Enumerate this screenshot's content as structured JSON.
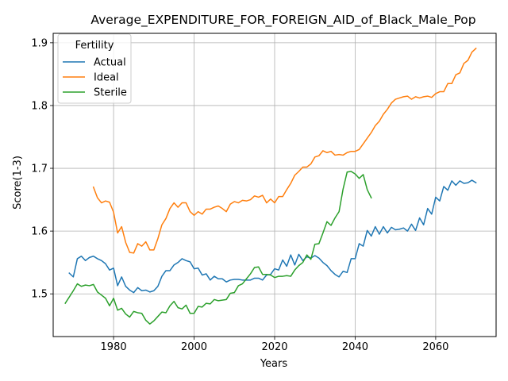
{
  "chart_data": {
    "type": "line",
    "title": "Average_EXPENDITURE_FOR_FOREIGN_AID_of_Black_Male_Pop",
    "xlabel": "Years",
    "ylabel": "Score(1-3)",
    "xlim": [
      1965,
      2075
    ],
    "ylim": [
      1.432,
      1.915
    ],
    "xticks": [
      1980,
      2000,
      2020,
      2040,
      2060
    ],
    "yticks": [
      1.5,
      1.6,
      1.7,
      1.8,
      1.9
    ],
    "xtick_labels": [
      "1980",
      "2000",
      "2020",
      "2040",
      "2060"
    ],
    "ytick_labels": [
      "1.5",
      "1.6",
      "1.7",
      "1.8",
      "1.9"
    ],
    "grid": true,
    "legend": {
      "title": "Fertility",
      "placement": "top-left"
    },
    "series": [
      {
        "name": "Actual",
        "color": "#1f77b4",
        "x": [
          1969,
          1970,
          1971,
          1972,
          1973,
          1974,
          1975,
          1976,
          1977,
          1978,
          1979,
          1980,
          1981,
          1982,
          1983,
          1984,
          1985,
          1986,
          1987,
          1988,
          1989,
          1990,
          1991,
          1992,
          1993,
          1994,
          1995,
          1996,
          1997,
          1998,
          1999,
          2000,
          2001,
          2002,
          2003,
          2004,
          2005,
          2006,
          2007,
          2008,
          2009,
          2010,
          2011,
          2012,
          2013,
          2014,
          2015,
          2016,
          2017,
          2018,
          2019,
          2020,
          2021,
          2022,
          2023,
          2024,
          2025,
          2026,
          2027,
          2028,
          2029,
          2030,
          2031,
          2032,
          2033,
          2034,
          2035,
          2036,
          2037,
          2038,
          2039,
          2040,
          2041,
          2042,
          2043,
          2044,
          2045,
          2046,
          2047,
          2048,
          2049,
          2050,
          2051,
          2052,
          2053,
          2054,
          2055,
          2056,
          2057,
          2058,
          2059,
          2060,
          2061,
          2062,
          2063,
          2064,
          2065,
          2066,
          2067,
          2068,
          2069,
          2070
        ],
        "values": [
          1.533,
          1.527,
          1.556,
          1.56,
          1.553,
          1.558,
          1.56,
          1.556,
          1.553,
          1.548,
          1.538,
          1.541,
          1.513,
          1.527,
          1.512,
          1.506,
          1.502,
          1.51,
          1.505,
          1.506,
          1.503,
          1.505,
          1.512,
          1.528,
          1.537,
          1.537,
          1.546,
          1.55,
          1.556,
          1.553,
          1.551,
          1.54,
          1.541,
          1.53,
          1.532,
          1.522,
          1.528,
          1.524,
          1.524,
          1.519,
          1.522,
          1.523,
          1.523,
          1.522,
          1.522,
          1.522,
          1.525,
          1.525,
          1.522,
          1.53,
          1.531,
          1.54,
          1.538,
          1.554,
          1.544,
          1.562,
          1.546,
          1.563,
          1.553,
          1.559,
          1.557,
          1.561,
          1.557,
          1.55,
          1.545,
          1.537,
          1.531,
          1.527,
          1.536,
          1.534,
          1.556,
          1.556,
          1.58,
          1.576,
          1.601,
          1.592,
          1.607,
          1.595,
          1.607,
          1.597,
          1.606,
          1.602,
          1.603,
          1.605,
          1.6,
          1.611,
          1.601,
          1.621,
          1.61,
          1.636,
          1.627,
          1.654,
          1.648,
          1.671,
          1.665,
          1.68,
          1.673,
          1.68,
          1.676,
          1.677,
          1.681,
          1.677
        ]
      },
      {
        "name": "Ideal",
        "color": "#ff7f0e",
        "x": [
          1975,
          1976,
          1977,
          1978,
          1979,
          1980,
          1981,
          1982,
          1983,
          1984,
          1985,
          1986,
          1987,
          1988,
          1989,
          1990,
          1991,
          1992,
          1993,
          1994,
          1995,
          1996,
          1997,
          1998,
          1999,
          2000,
          2001,
          2002,
          2003,
          2004,
          2005,
          2006,
          2007,
          2008,
          2009,
          2010,
          2011,
          2012,
          2013,
          2014,
          2015,
          2016,
          2017,
          2018,
          2019,
          2020,
          2021,
          2022,
          2023,
          2024,
          2025,
          2026,
          2027,
          2028,
          2029,
          2030,
          2031,
          2032,
          2033,
          2034,
          2035,
          2036,
          2037,
          2038,
          2039,
          2040,
          2041,
          2042,
          2043,
          2044,
          2045,
          2046,
          2047,
          2048,
          2049,
          2050,
          2051,
          2052,
          2053,
          2054,
          2055,
          2056,
          2057,
          2058,
          2059,
          2060,
          2061,
          2062,
          2063,
          2064,
          2065,
          2066,
          2067,
          2068,
          2069,
          2070
        ],
        "values": [
          1.67,
          1.653,
          1.645,
          1.648,
          1.646,
          1.63,
          1.597,
          1.607,
          1.582,
          1.566,
          1.565,
          1.58,
          1.576,
          1.583,
          1.57,
          1.57,
          1.588,
          1.61,
          1.62,
          1.636,
          1.645,
          1.638,
          1.645,
          1.645,
          1.631,
          1.625,
          1.631,
          1.627,
          1.635,
          1.635,
          1.638,
          1.64,
          1.636,
          1.631,
          1.643,
          1.647,
          1.645,
          1.649,
          1.648,
          1.65,
          1.656,
          1.654,
          1.657,
          1.645,
          1.651,
          1.645,
          1.655,
          1.655,
          1.666,
          1.676,
          1.689,
          1.695,
          1.702,
          1.702,
          1.707,
          1.718,
          1.72,
          1.728,
          1.725,
          1.727,
          1.721,
          1.722,
          1.721,
          1.725,
          1.727,
          1.727,
          1.73,
          1.739,
          1.748,
          1.757,
          1.768,
          1.775,
          1.786,
          1.794,
          1.804,
          1.81,
          1.812,
          1.814,
          1.815,
          1.81,
          1.814,
          1.812,
          1.814,
          1.815,
          1.813,
          1.819,
          1.822,
          1.822,
          1.835,
          1.835,
          1.849,
          1.852,
          1.867,
          1.872,
          1.885,
          1.891
        ]
      },
      {
        "name": "Sterile",
        "color": "#2ca02c",
        "x": [
          1968,
          1969,
          1970,
          1971,
          1972,
          1973,
          1974,
          1975,
          1976,
          1977,
          1978,
          1979,
          1980,
          1981,
          1982,
          1983,
          1984,
          1985,
          1986,
          1987,
          1988,
          1989,
          1990,
          1991,
          1992,
          1993,
          1994,
          1995,
          1996,
          1997,
          1998,
          1999,
          2000,
          2001,
          2002,
          2003,
          2004,
          2005,
          2006,
          2007,
          2008,
          2009,
          2010,
          2011,
          2012,
          2013,
          2014,
          2015,
          2016,
          2017,
          2018,
          2019,
          2020,
          2021,
          2022,
          2023,
          2024,
          2025,
          2026,
          2027,
          2028,
          2029,
          2030,
          2031,
          2032,
          2033,
          2034,
          2035,
          2036,
          2037,
          2038,
          2039,
          2040,
          2041,
          2042,
          2043,
          2044
        ],
        "values": [
          1.485,
          1.495,
          1.505,
          1.516,
          1.512,
          1.514,
          1.513,
          1.515,
          1.503,
          1.498,
          1.493,
          1.481,
          1.493,
          1.474,
          1.477,
          1.468,
          1.463,
          1.472,
          1.47,
          1.469,
          1.458,
          1.452,
          1.457,
          1.464,
          1.471,
          1.47,
          1.481,
          1.488,
          1.478,
          1.476,
          1.482,
          1.469,
          1.469,
          1.48,
          1.479,
          1.485,
          1.484,
          1.491,
          1.489,
          1.49,
          1.491,
          1.501,
          1.502,
          1.513,
          1.516,
          1.524,
          1.532,
          1.542,
          1.543,
          1.531,
          1.531,
          1.53,
          1.526,
          1.528,
          1.528,
          1.529,
          1.528,
          1.538,
          1.545,
          1.55,
          1.562,
          1.555,
          1.579,
          1.58,
          1.597,
          1.615,
          1.609,
          1.621,
          1.631,
          1.667,
          1.694,
          1.695,
          1.691,
          1.684,
          1.69,
          1.666,
          1.653
        ]
      }
    ]
  }
}
